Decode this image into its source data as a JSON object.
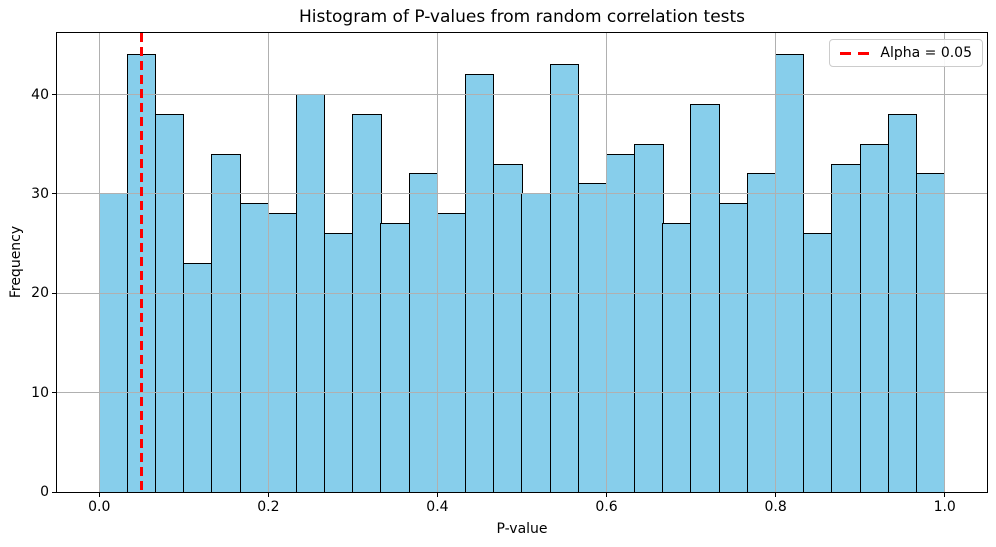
{
  "chart_data": {
    "type": "bar",
    "title": "Histogram of P-values from random correlation tests",
    "xlabel": "P-value",
    "ylabel": "Frequency",
    "bins": {
      "start": 0.0,
      "end": 1.0,
      "count": 30
    },
    "values": [
      30,
      44,
      38,
      23,
      34,
      29,
      28,
      40,
      26,
      38,
      27,
      32,
      28,
      42,
      33,
      30,
      43,
      31,
      34,
      35,
      27,
      39,
      29,
      32,
      44,
      26,
      33,
      35,
      38,
      32
    ],
    "x_ticks": [
      {
        "value": 0.0,
        "label": "0.0"
      },
      {
        "value": 0.2,
        "label": "0.2"
      },
      {
        "value": 0.4,
        "label": "0.4"
      },
      {
        "value": 0.6,
        "label": "0.6"
      },
      {
        "value": 0.8,
        "label": "0.8"
      },
      {
        "value": 1.0,
        "label": "1.0"
      }
    ],
    "y_ticks": [
      {
        "value": 0,
        "label": "0"
      },
      {
        "value": 10,
        "label": "10"
      },
      {
        "value": 20,
        "label": "20"
      },
      {
        "value": 30,
        "label": "30"
      },
      {
        "value": 40,
        "label": "40"
      }
    ],
    "xlim": [
      -0.05,
      1.05
    ],
    "ylim": [
      0,
      46.2
    ],
    "grid": true,
    "threshold_line": {
      "x": 0.05,
      "color": "#ff0000",
      "style": "dashed"
    },
    "legend": {
      "position": "top-right",
      "entries": [
        {
          "label": "Alpha = 0.05",
          "color": "#ff0000",
          "style": "dashed"
        }
      ]
    },
    "colors": {
      "bar_fill": "#87ceeb",
      "bar_edge": "#000000",
      "grid": "#b0b0b0",
      "text": "#000000",
      "legend_border": "#cccccc"
    }
  }
}
